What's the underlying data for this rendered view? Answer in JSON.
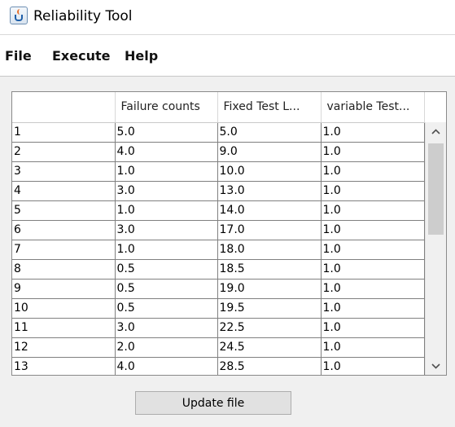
{
  "window": {
    "title": "Reliability Tool",
    "icon": "java-cup-icon"
  },
  "menu": {
    "items": [
      {
        "label": "File"
      },
      {
        "label": "Execute"
      },
      {
        "label": "Help"
      }
    ]
  },
  "table": {
    "headers": [
      "",
      "Failure counts",
      "Fixed Test L...",
      "variable Test..."
    ],
    "rows": [
      [
        "1",
        "5.0",
        "5.0",
        "1.0"
      ],
      [
        "2",
        "4.0",
        "9.0",
        "1.0"
      ],
      [
        "3",
        "1.0",
        "10.0",
        "1.0"
      ],
      [
        "4",
        "3.0",
        "13.0",
        "1.0"
      ],
      [
        "5",
        "1.0",
        "14.0",
        "1.0"
      ],
      [
        "6",
        "3.0",
        "17.0",
        "1.0"
      ],
      [
        "7",
        "1.0",
        "18.0",
        "1.0"
      ],
      [
        "8",
        "0.5",
        "18.5",
        "1.0"
      ],
      [
        "9",
        "0.5",
        "19.0",
        "1.0"
      ],
      [
        "10",
        "0.5",
        "19.5",
        "1.0"
      ],
      [
        "11",
        "3.0",
        "22.5",
        "1.0"
      ],
      [
        "12",
        "2.0",
        "24.5",
        "1.0"
      ],
      [
        "13",
        "4.0",
        "28.5",
        "1.0"
      ]
    ]
  },
  "scrollbar": {
    "up_icon": "chevron-up-icon",
    "down_icon": "chevron-down-icon"
  },
  "actions": {
    "update_label": "Update file"
  }
}
